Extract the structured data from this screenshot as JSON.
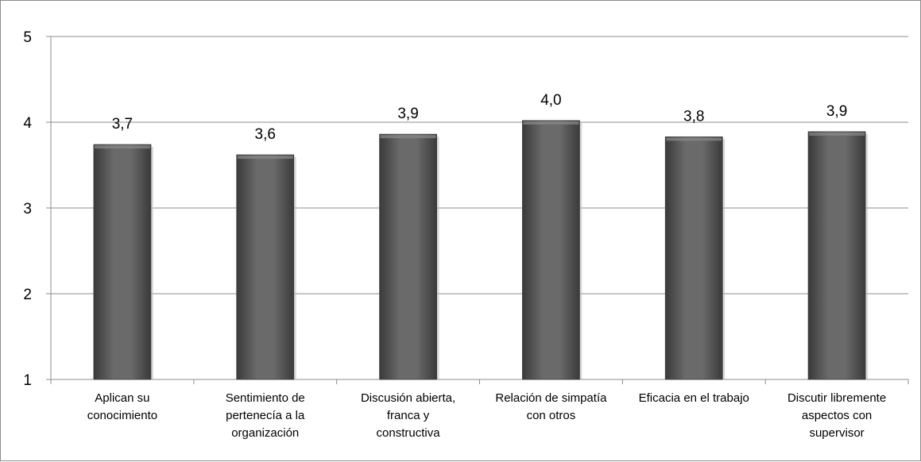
{
  "chart_data": {
    "type": "bar",
    "categories": [
      "Aplican su conocimiento",
      "Sentimiento de pertenecía a la organización",
      "Discusión abierta, franca y constructiva",
      "Relación de simpatía con otros",
      "Eficacia en el trabajo",
      "Discutir libremente aspectos con supervisor"
    ],
    "category_label_lines": [
      [
        "Aplican su",
        "conocimiento"
      ],
      [
        "Sentimiento de",
        "pertenecía a la",
        "organización"
      ],
      [
        "Discusión abierta,",
        "franca y",
        "constructiva"
      ],
      [
        "Relación de simpatía",
        "con otros"
      ],
      [
        "Eficacia en el trabajo"
      ],
      [
        "Discutir libremente",
        "aspectos con",
        "supervisor"
      ]
    ],
    "values": [
      3.74,
      3.62,
      3.86,
      4.02,
      3.83,
      3.89
    ],
    "data_labels": [
      "3,7",
      "3,6",
      "3,9",
      "4,0",
      "3,8",
      "3,9"
    ],
    "ylim": [
      1,
      5
    ],
    "yticks": [
      1,
      2,
      3,
      4,
      5
    ],
    "ytick_labels": [
      "1",
      "2",
      "3",
      "4",
      "5"
    ],
    "grid": true,
    "legend": "none",
    "bar_color": "#595959",
    "grid_color": "#8c8c8c"
  }
}
